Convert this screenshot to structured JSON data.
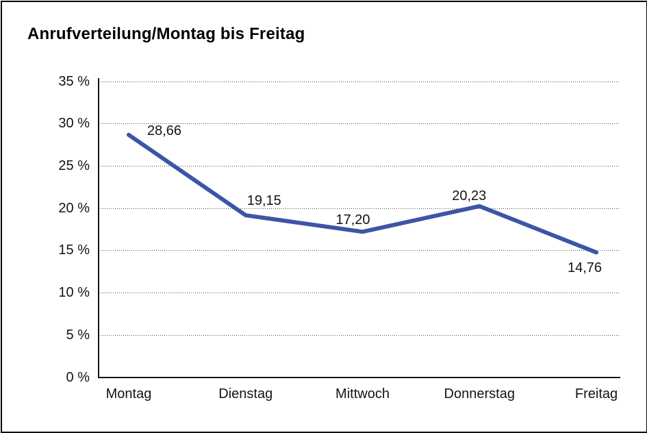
{
  "header": {
    "title": "Anrufverteilung/Montag bis Freitag"
  },
  "chart_data": {
    "type": "line",
    "title": "Anrufverteilung/Montag bis Freitag",
    "categories": [
      "Montag",
      "Dienstag",
      "Mittwoch",
      "Donnerstag",
      "Freitag"
    ],
    "values": [
      28.66,
      19.15,
      17.2,
      20.23,
      14.76
    ],
    "point_labels": [
      "28,66",
      "19,15",
      "17,20",
      "20,23",
      "14,76"
    ],
    "y_ticks": [
      {
        "value": 0,
        "label": "0 %"
      },
      {
        "value": 5,
        "label": "5 %"
      },
      {
        "value": 10,
        "label": "10 %"
      },
      {
        "value": 15,
        "label": "15 %"
      },
      {
        "value": 20,
        "label": "20 %"
      },
      {
        "value": 25,
        "label": "25 %"
      },
      {
        "value": 30,
        "label": "30 %"
      },
      {
        "value": 35,
        "label": "35 %"
      }
    ],
    "ylim": [
      0,
      35
    ],
    "xlabel": "",
    "ylabel": "",
    "grid": "horizontal-dotted",
    "legend": "none",
    "line_color": "#3C55A5",
    "axis_color": "#141414",
    "label_color": "#141414",
    "background_color": "#FFFFFF"
  }
}
